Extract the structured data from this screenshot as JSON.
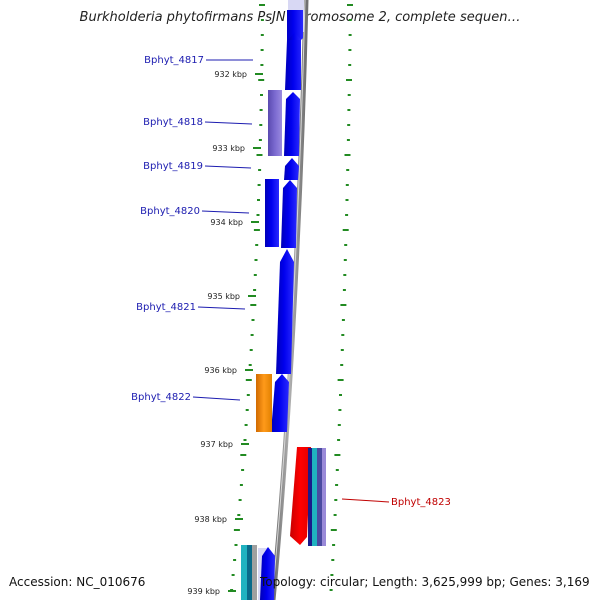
{
  "title": "Burkholderia phytofirmans PsJN chromosome 2, complete sequen…",
  "footer": {
    "accession": "Accession: NC_010676",
    "topology": "Topology: circular; Length: 3,625,999 bp; Genes: 3,169"
  },
  "colors": {
    "forward_cds": "#0000e6",
    "reverse_cds": "#e60000",
    "tick": "#228b22",
    "backbone": "#8c8c8c",
    "label_forward": "#1c1cb0",
    "label_reverse": "#c00000"
  },
  "kbp_ticks": [
    "932 kbp",
    "933 kbp",
    "934 kbp",
    "935 kbp",
    "936 kbp",
    "937 kbp",
    "938 kbp",
    "939 kbp"
  ],
  "genes": [
    {
      "label": "Bphyt_4817",
      "strand": "forward"
    },
    {
      "label": "Bphyt_4818",
      "strand": "forward"
    },
    {
      "label": "Bphyt_4819",
      "strand": "forward"
    },
    {
      "label": "Bphyt_4820",
      "strand": "forward"
    },
    {
      "label": "Bphyt_4821",
      "strand": "forward"
    },
    {
      "label": "Bphyt_4822",
      "strand": "forward"
    },
    {
      "label": "Bphyt_4823",
      "strand": "reverse"
    }
  ]
}
